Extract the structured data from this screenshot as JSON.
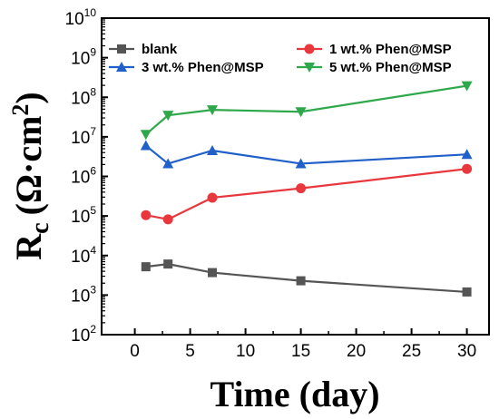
{
  "chart_data": {
    "type": "line",
    "title": "",
    "xlabel": "Time (day)",
    "ylabel": {
      "main": "R",
      "sub": "c",
      "unit": "(Ω·cm",
      "unit_exp": "2",
      "unit_close": ")"
    },
    "xlim": [
      -3,
      32
    ],
    "xticks": [
      0,
      5,
      10,
      15,
      20,
      25,
      30
    ],
    "ylim_log10": [
      2,
      10
    ],
    "yticks": [
      {
        "base": "10",
        "exp": "2",
        "v": 2
      },
      {
        "base": "10",
        "exp": "3",
        "v": 3
      },
      {
        "base": "10",
        "exp": "4",
        "v": 4
      },
      {
        "base": "10",
        "exp": "5",
        "v": 5
      },
      {
        "base": "10",
        "exp": "6",
        "v": 6
      },
      {
        "base": "10",
        "exp": "7",
        "v": 7
      },
      {
        "base": "10",
        "exp": "8",
        "v": 8
      },
      {
        "base": "10",
        "exp": "9",
        "v": 9
      },
      {
        "base": "10",
        "exp": "10",
        "v": 10
      }
    ],
    "y_scale": "log",
    "grid": false,
    "legend_position": "top (two columns inside plot)",
    "x": [
      1,
      3,
      7,
      15,
      30
    ],
    "series": [
      {
        "name": "blank",
        "color": "#555555",
        "marker": "square",
        "values": [
          5200,
          6100,
          3700,
          2300,
          1200
        ]
      },
      {
        "name": "1 wt.% Phen@MSP",
        "color": "#e8383d",
        "marker": "circle",
        "values": [
          105000,
          82000,
          290000,
          500000,
          1550000
        ]
      },
      {
        "name": "3 wt.% Phen@MSP",
        "color": "#2060c8",
        "marker": "triangle-up",
        "values": [
          6000000,
          2100000,
          4500000,
          2100000,
          3600000
        ]
      },
      {
        "name": "5 wt.% Phen@MSP",
        "color": "#2ea84a",
        "marker": "triangle-down",
        "values": [
          11500000,
          35000000,
          48000000,
          43000000,
          195000000
        ]
      }
    ]
  }
}
